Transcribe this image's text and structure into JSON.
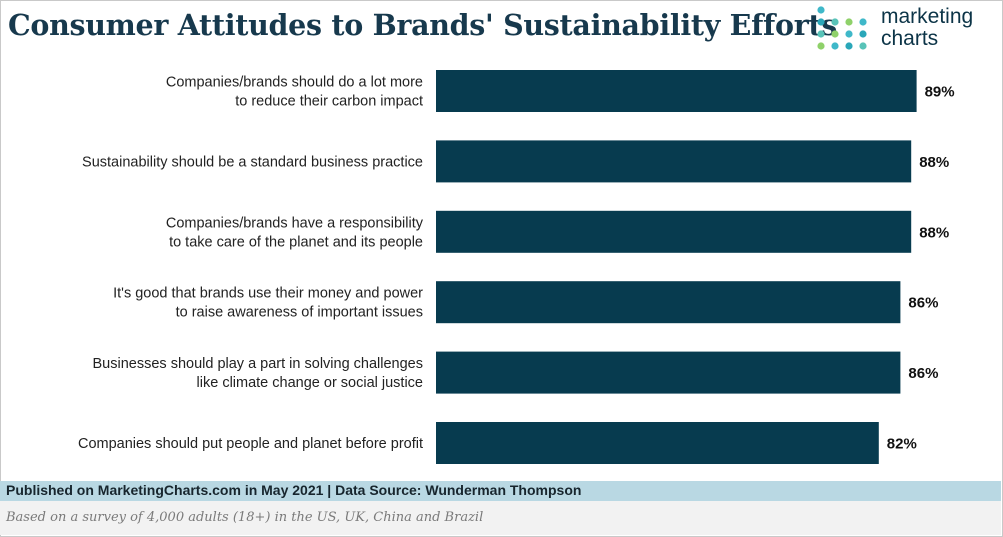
{
  "chart_data": {
    "type": "bar",
    "orientation": "horizontal",
    "title": "Consumer Attitudes to Brands' Sustainability Efforts",
    "categories": [
      [
        "Companies/brands should do a lot more",
        "to reduce their carbon impact"
      ],
      [
        "Sustainability should be a standard business practice"
      ],
      [
        "Companies/brands have a responsibility",
        "to take care of the planet and its people"
      ],
      [
        "It's good that brands use their money and power",
        "to raise awareness of important issues"
      ],
      [
        "Businesses should play a part in solving challenges",
        "like climate change or social justice"
      ],
      [
        "Companies should put people and planet before profit"
      ]
    ],
    "values": [
      89,
      88,
      88,
      86,
      86,
      82
    ],
    "value_labels": [
      "89%",
      "88%",
      "88%",
      "86%",
      "86%",
      "82%"
    ],
    "xlim": [
      0,
      100
    ],
    "bar_color": "#073b4f",
    "grid": false
  },
  "logo": {
    "line1": "marketing",
    "line2": "charts",
    "dot_color": "#3fb8c9",
    "text_color": "#0c3447"
  },
  "footer": {
    "published": "Published on MarketingCharts.com in May 2021 | Data Source: Wunderman Thompson",
    "note": "Based on a survey of 4,000 adults (18+) in the US, UK, China and Brazil"
  }
}
